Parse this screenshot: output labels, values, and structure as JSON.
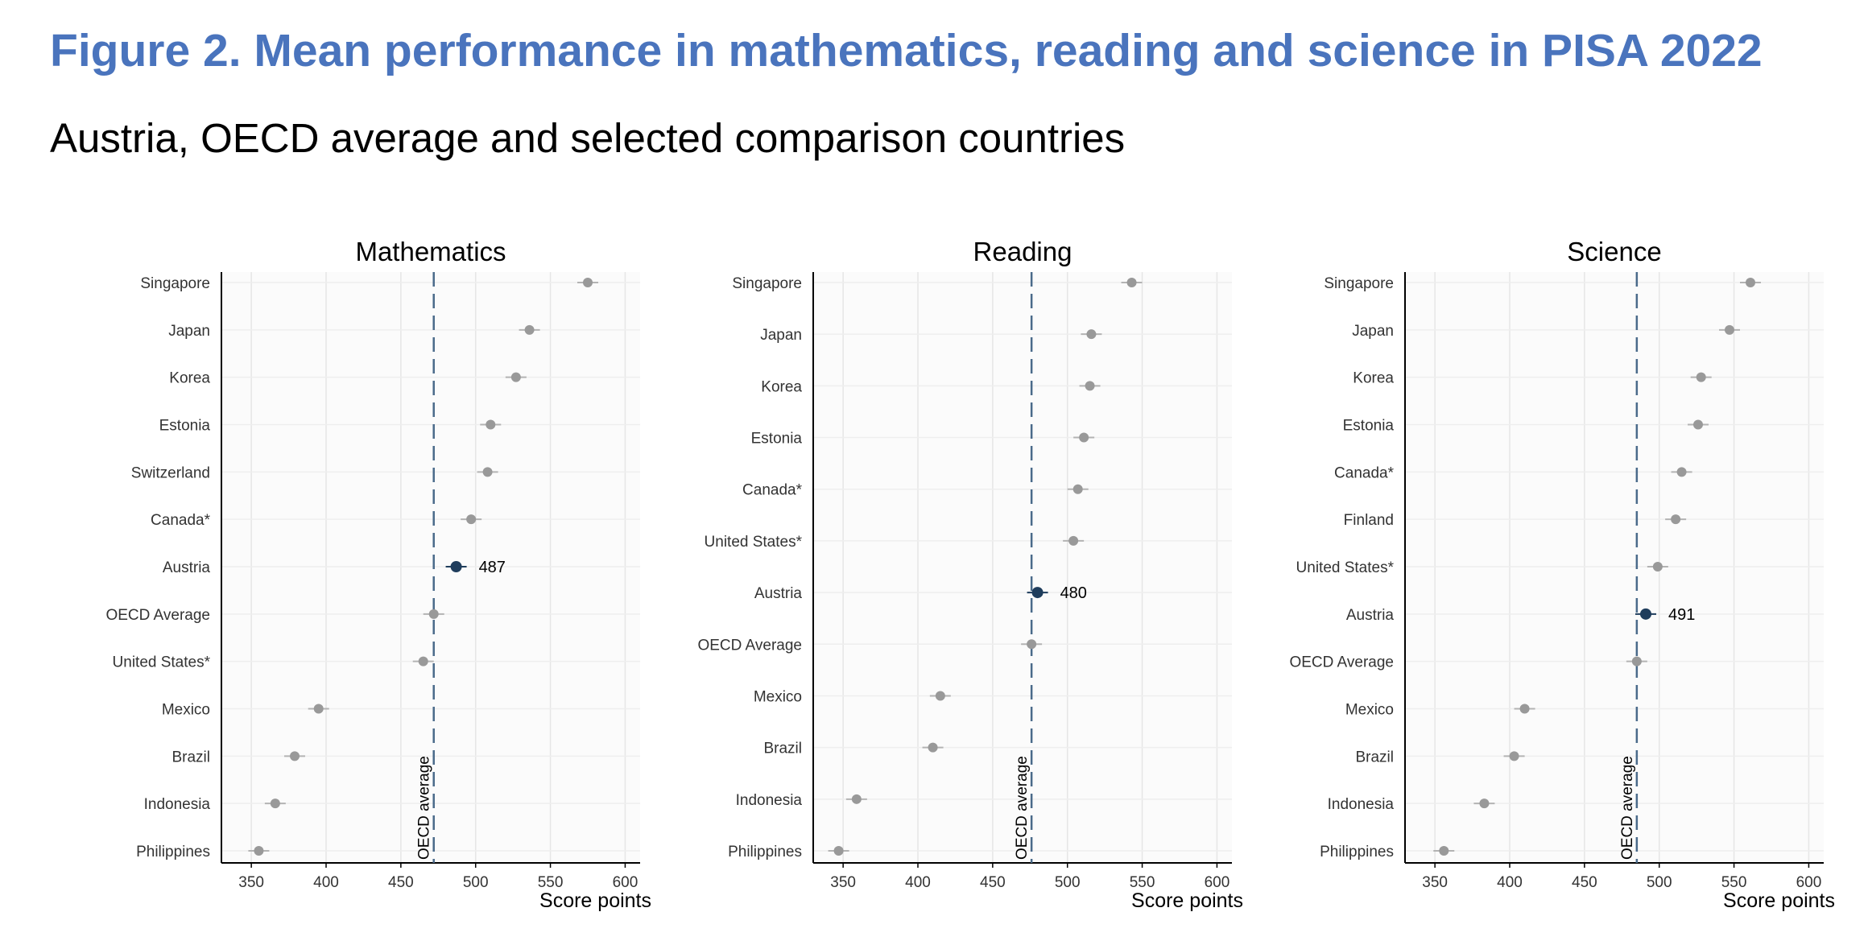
{
  "title": "Figure 2. Mean performance in mathematics, reading and science in PISA 2022",
  "subtitle": "Austria, OECD average and selected comparison countries",
  "colors": {
    "title": "#4a74bd",
    "highlight": "#1f3d5c",
    "point": "#999999",
    "oecd_line": "#4a6a8a"
  },
  "chart_data": [
    {
      "type": "scatter",
      "title": "Mathematics",
      "xlabel": "Score points",
      "xlim": [
        330,
        610
      ],
      "xticks": [
        350,
        400,
        450,
        500,
        550,
        600
      ],
      "grid": true,
      "reference_line": {
        "label": "OECD average",
        "value": 472
      },
      "highlight": "Austria",
      "categories": [
        "Singapore",
        "Japan",
        "Korea",
        "Estonia",
        "Switzerland",
        "Canada*",
        "Austria",
        "OECD Average",
        "United States*",
        "Mexico",
        "Brazil",
        "Indonesia",
        "Philippines"
      ],
      "values": [
        575,
        536,
        527,
        510,
        508,
        497,
        487,
        472,
        465,
        395,
        379,
        366,
        355
      ],
      "data_labels": {
        "Austria": "487"
      }
    },
    {
      "type": "scatter",
      "title": "Reading",
      "xlabel": "Score points",
      "xlim": [
        330,
        610
      ],
      "xticks": [
        350,
        400,
        450,
        500,
        550,
        600
      ],
      "grid": true,
      "reference_line": {
        "label": "OECD average",
        "value": 476
      },
      "highlight": "Austria",
      "categories": [
        "Singapore",
        "Japan",
        "Korea",
        "Estonia",
        "Canada*",
        "United States*",
        "Austria",
        "OECD Average",
        "Mexico",
        "Brazil",
        "Indonesia",
        "Philippines"
      ],
      "values": [
        543,
        516,
        515,
        511,
        507,
        504,
        480,
        476,
        415,
        410,
        359,
        347
      ],
      "data_labels": {
        "Austria": "480"
      }
    },
    {
      "type": "scatter",
      "title": "Science",
      "xlabel": "Score points",
      "xlim": [
        330,
        610
      ],
      "xticks": [
        350,
        400,
        450,
        500,
        550,
        600
      ],
      "grid": true,
      "reference_line": {
        "label": "OECD average",
        "value": 485
      },
      "highlight": "Austria",
      "categories": [
        "Singapore",
        "Japan",
        "Korea",
        "Estonia",
        "Canada*",
        "Finland",
        "United States*",
        "Austria",
        "OECD Average",
        "Mexico",
        "Brazil",
        "Indonesia",
        "Philippines"
      ],
      "values": [
        561,
        547,
        528,
        526,
        515,
        511,
        499,
        491,
        485,
        410,
        403,
        383,
        356
      ],
      "data_labels": {
        "Austria": "491"
      }
    }
  ]
}
